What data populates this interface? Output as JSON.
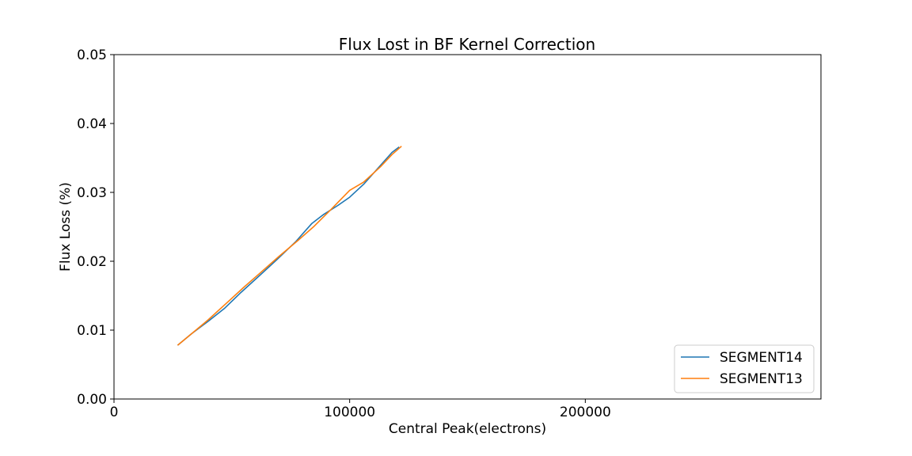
{
  "chart_data": {
    "type": "line",
    "title": "Flux Lost in BF Kernel Correction",
    "xlabel": "Central Peak(electrons)",
    "ylabel": "Flux Loss (%)",
    "xlim": [
      0,
      300000
    ],
    "ylim": [
      0,
      0.05
    ],
    "xticks": [
      0,
      100000,
      200000
    ],
    "xtick_labels": [
      "0",
      "100000",
      "200000"
    ],
    "yticks": [
      0,
      0.01,
      0.02,
      0.03,
      0.04,
      0.05
    ],
    "ytick_labels": [
      "0.00",
      "0.01",
      "0.02",
      "0.03",
      "0.04",
      "0.05"
    ],
    "grid": false,
    "legend_position": "lower-right",
    "series": [
      {
        "name": "SEGMENT14",
        "color": "#1f77b4",
        "x": [
          27000,
          33000,
          40000,
          47000,
          54000,
          62000,
          69000,
          77000,
          84000,
          89000,
          95000,
          100000,
          106000,
          112000,
          118000,
          121000
        ],
        "y": [
          0.0078,
          0.0095,
          0.0113,
          0.0132,
          0.0155,
          0.018,
          0.0202,
          0.0228,
          0.0255,
          0.0268,
          0.0281,
          0.0293,
          0.0312,
          0.0335,
          0.0358,
          0.0366
        ]
      },
      {
        "name": "SEGMENT13",
        "color": "#ff7f0e",
        "x": [
          27000,
          33000,
          40000,
          48000,
          55000,
          62000,
          70000,
          78000,
          85000,
          92000,
          100000,
          106000,
          113000,
          118000,
          122000
        ],
        "y": [
          0.0078,
          0.0095,
          0.0115,
          0.014,
          0.0162,
          0.0183,
          0.0207,
          0.023,
          0.0251,
          0.0275,
          0.0303,
          0.0315,
          0.0337,
          0.0355,
          0.0367
        ]
      }
    ]
  }
}
